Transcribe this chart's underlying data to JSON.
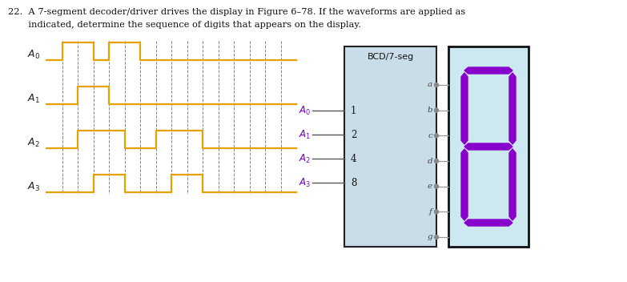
{
  "title_line1": "22.  A 7-segment decoder/driver drives the display in Figure 6–78. If the waveforms are applied as",
  "title_line2": "       indicated, determine the sequence of digits that appears on the display.",
  "waveform_color": "#E8A000",
  "dashed_color": "#555555",
  "bg_color": "#ffffff",
  "signal_labels": [
    "A₀",
    "A₁",
    "A₂",
    "A₃"
  ],
  "A0_steps": [
    0,
    1,
    1,
    0,
    1,
    1,
    0,
    0,
    0,
    0,
    0,
    0,
    0,
    0,
    0,
    0
  ],
  "A1_steps": [
    0,
    0,
    1,
    1,
    0,
    0,
    0,
    0,
    0,
    0,
    0,
    0,
    0,
    0,
    0,
    0
  ],
  "A2_steps": [
    0,
    0,
    1,
    1,
    1,
    0,
    0,
    1,
    1,
    1,
    0,
    0,
    0,
    0,
    0,
    0
  ],
  "A3_steps": [
    0,
    0,
    0,
    1,
    1,
    0,
    0,
    0,
    1,
    1,
    0,
    0,
    0,
    0,
    0,
    0
  ],
  "num_steps": 16,
  "box_bg": "#c8dde8",
  "box_border": "#222222",
  "box_title": "BCD/7-seg",
  "box_inputs": [
    "1",
    "2",
    "4",
    "8"
  ],
  "box_input_labels": [
    "A₀",
    "A₁",
    "A₂",
    "A₃"
  ],
  "box_outputs": [
    "a",
    "b",
    "c",
    "d",
    "e",
    "f",
    "g"
  ],
  "display_bg": "#cce8f0",
  "display_border": "#111111",
  "seg_color": "#8800cc",
  "purple_label_color": "#7700cc"
}
